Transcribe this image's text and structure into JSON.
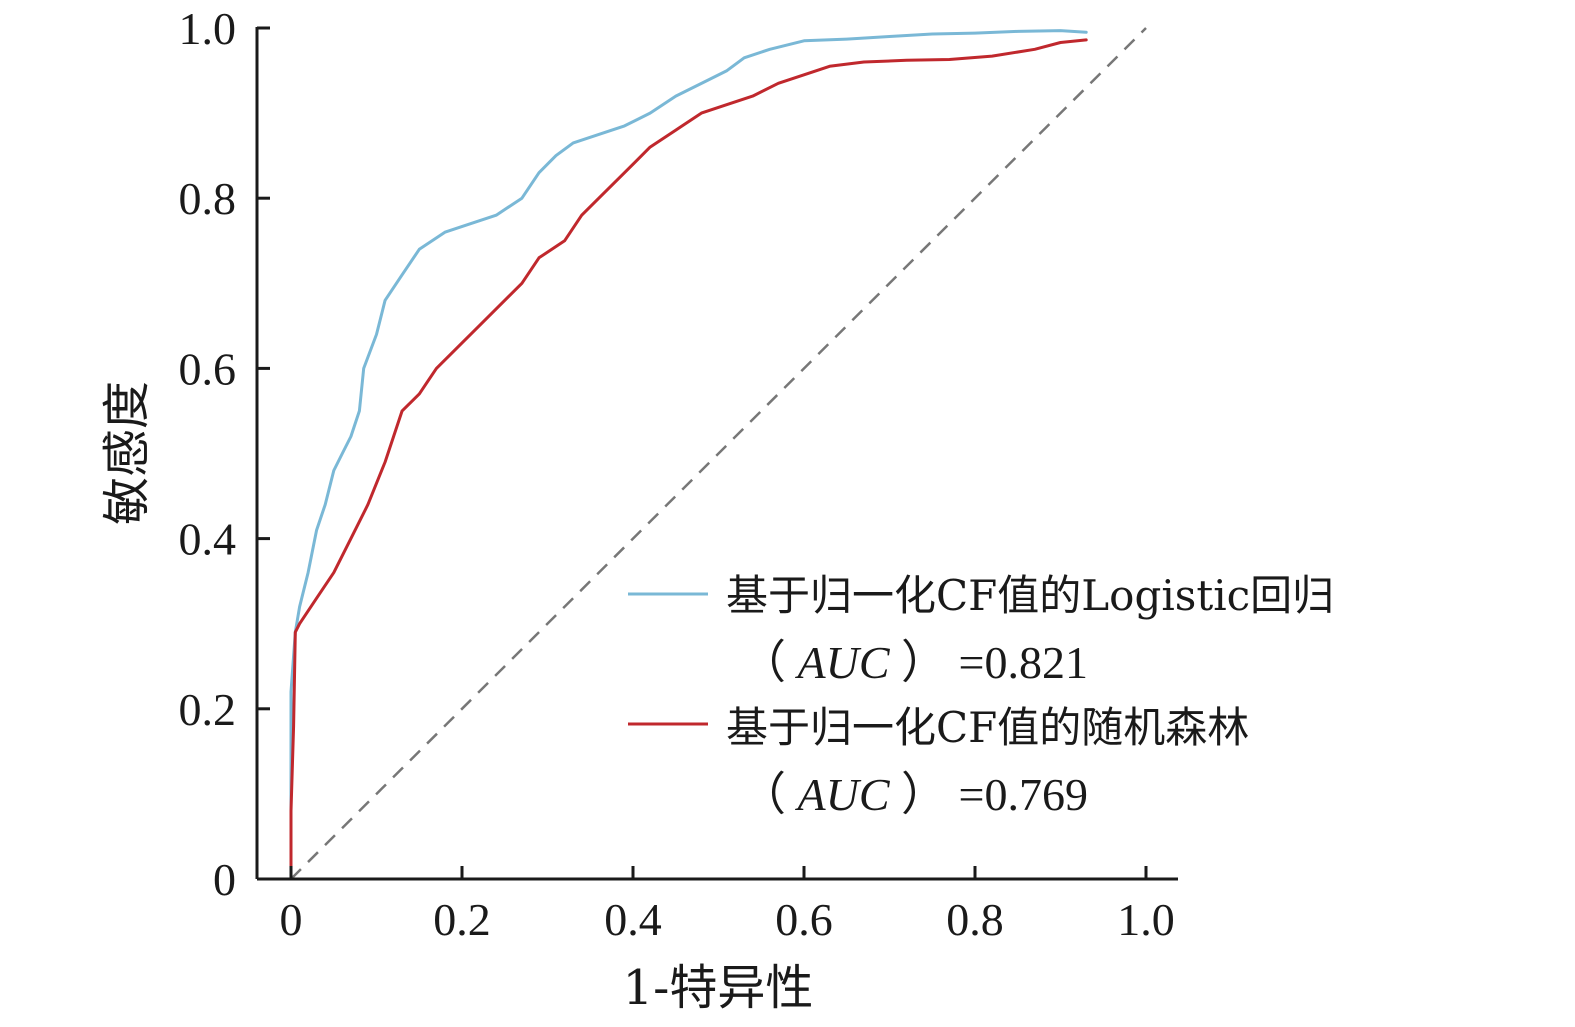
{
  "chart_data": {
    "type": "line",
    "title": "",
    "xlabel": "1-特异性",
    "ylabel": "敏感度",
    "xlim": [
      0,
      1.0
    ],
    "ylim": [
      0,
      1.0
    ],
    "x_ticks": [
      "0",
      "0.2",
      "0.4",
      "0.6",
      "0.8",
      "1.0"
    ],
    "y_ticks": [
      "0",
      "0.2",
      "0.4",
      "0.6",
      "0.8",
      "1.0"
    ],
    "grid": false,
    "legend_position": "bottom-right",
    "reference_line": {
      "style": "dashed",
      "color": "#777777",
      "from": [
        0,
        0
      ],
      "to": [
        1.0,
        1.0
      ]
    },
    "series": [
      {
        "name": "基于归一化CF值的Logistic回归",
        "auc_open": "（",
        "auc_label": "AUC",
        "auc_close": "）",
        "auc_value": "=0.821",
        "color": "#7ab8d6",
        "points": [
          [
            0.0,
            0.0
          ],
          [
            0.0,
            0.12
          ],
          [
            0.0,
            0.22
          ],
          [
            0.005,
            0.29
          ],
          [
            0.01,
            0.32
          ],
          [
            0.02,
            0.36
          ],
          [
            0.03,
            0.41
          ],
          [
            0.04,
            0.44
          ],
          [
            0.05,
            0.48
          ],
          [
            0.06,
            0.5
          ],
          [
            0.07,
            0.52
          ],
          [
            0.08,
            0.55
          ],
          [
            0.085,
            0.6
          ],
          [
            0.1,
            0.64
          ],
          [
            0.11,
            0.68
          ],
          [
            0.13,
            0.71
          ],
          [
            0.15,
            0.74
          ],
          [
            0.18,
            0.76
          ],
          [
            0.21,
            0.77
          ],
          [
            0.24,
            0.78
          ],
          [
            0.27,
            0.8
          ],
          [
            0.29,
            0.83
          ],
          [
            0.31,
            0.85
          ],
          [
            0.33,
            0.865
          ],
          [
            0.36,
            0.875
          ],
          [
            0.39,
            0.885
          ],
          [
            0.42,
            0.9
          ],
          [
            0.45,
            0.92
          ],
          [
            0.49,
            0.94
          ],
          [
            0.51,
            0.95
          ],
          [
            0.53,
            0.965
          ],
          [
            0.56,
            0.975
          ],
          [
            0.6,
            0.985
          ],
          [
            0.65,
            0.987
          ],
          [
            0.7,
            0.99
          ],
          [
            0.75,
            0.993
          ],
          [
            0.8,
            0.994
          ],
          [
            0.85,
            0.996
          ],
          [
            0.9,
            0.997
          ],
          [
            0.93,
            0.995
          ]
        ]
      },
      {
        "name": "基于归一化CF值的随机森林",
        "auc_open": "（",
        "auc_label": "AUC",
        "auc_close": "）",
        "auc_value": "=0.769",
        "color": "#c0282d",
        "points": [
          [
            0.0,
            0.0
          ],
          [
            0.0,
            0.08
          ],
          [
            0.003,
            0.18
          ],
          [
            0.005,
            0.29
          ],
          [
            0.01,
            0.3
          ],
          [
            0.03,
            0.33
          ],
          [
            0.05,
            0.36
          ],
          [
            0.07,
            0.4
          ],
          [
            0.09,
            0.44
          ],
          [
            0.11,
            0.49
          ],
          [
            0.13,
            0.55
          ],
          [
            0.15,
            0.57
          ],
          [
            0.17,
            0.6
          ],
          [
            0.2,
            0.63
          ],
          [
            0.22,
            0.65
          ],
          [
            0.25,
            0.68
          ],
          [
            0.27,
            0.7
          ],
          [
            0.29,
            0.73
          ],
          [
            0.32,
            0.75
          ],
          [
            0.34,
            0.78
          ],
          [
            0.36,
            0.8
          ],
          [
            0.39,
            0.83
          ],
          [
            0.42,
            0.86
          ],
          [
            0.45,
            0.88
          ],
          [
            0.48,
            0.9
          ],
          [
            0.51,
            0.91
          ],
          [
            0.54,
            0.92
          ],
          [
            0.57,
            0.935
          ],
          [
            0.6,
            0.945
          ],
          [
            0.63,
            0.955
          ],
          [
            0.67,
            0.96
          ],
          [
            0.72,
            0.962
          ],
          [
            0.77,
            0.963
          ],
          [
            0.82,
            0.967
          ],
          [
            0.87,
            0.975
          ],
          [
            0.9,
            0.983
          ],
          [
            0.93,
            0.986
          ]
        ]
      }
    ]
  }
}
